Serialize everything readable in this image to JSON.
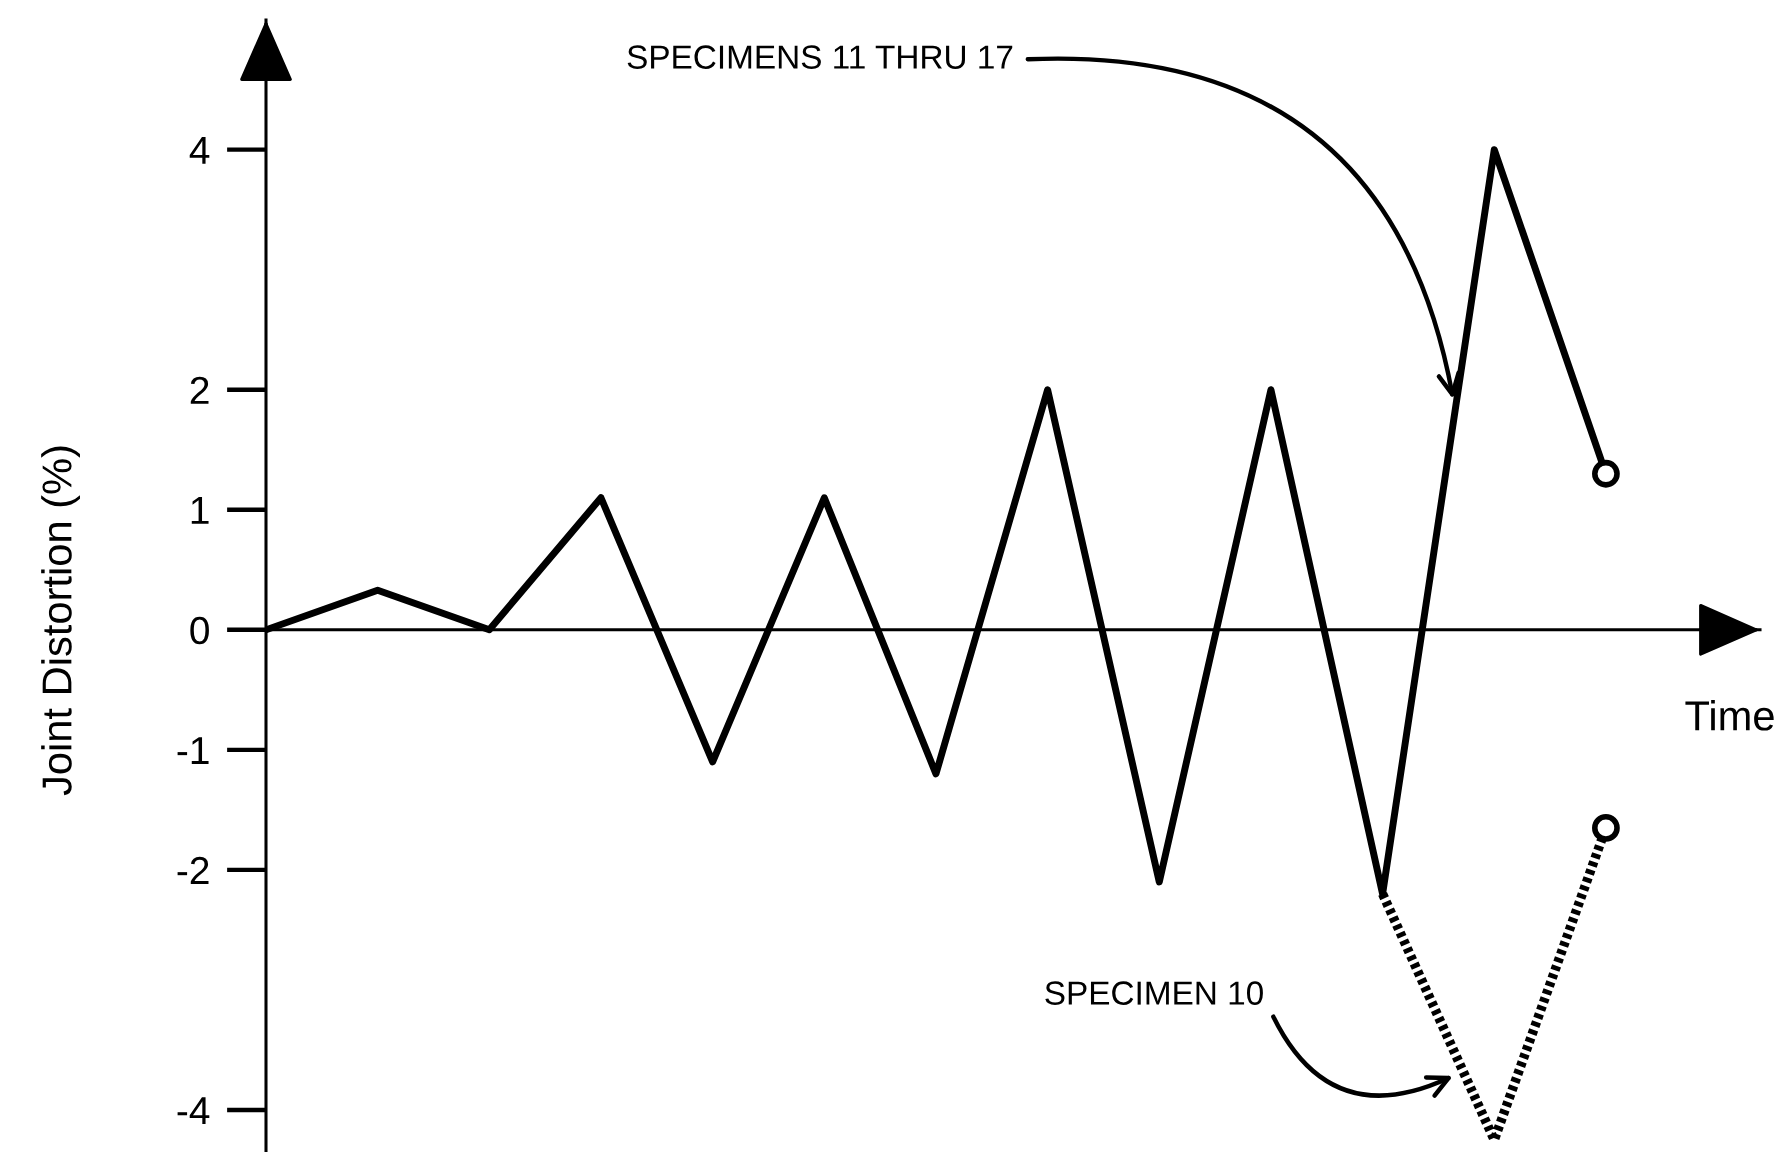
{
  "chart_data": {
    "type": "line",
    "xlabel": "Time",
    "ylabel": "Joint Distortion (%)",
    "categories": [
      null,
      null,
      null,
      null,
      null,
      null,
      null,
      null,
      null,
      null,
      null,
      null,
      null
    ],
    "series": [
      {
        "color": "#000000",
        "line_style": "solid",
        "values": [
          0,
          0.33,
          0,
          1.1,
          -1.1,
          1.1,
          -1.2,
          2.0,
          -2.1,
          2.0,
          -2.2,
          4.0,
          1.3
        ]
      },
      {
        "color": "#000000",
        "line_style": "dotted",
        "values": [
          null,
          null,
          null,
          null,
          null,
          null,
          null,
          null,
          null,
          null,
          -2.2,
          -4.25,
          -1.65
        ]
      }
    ],
    "ylim": [
      -4.35,
      5.08
    ],
    "yticks": [
      -4,
      -2,
      -1,
      0,
      1,
      2,
      4
    ],
    "tick_labels": "y",
    "annotations": [
      "SPECIMENS 11 THRU 17",
      "SPECIMEN 10"
    ]
  }
}
